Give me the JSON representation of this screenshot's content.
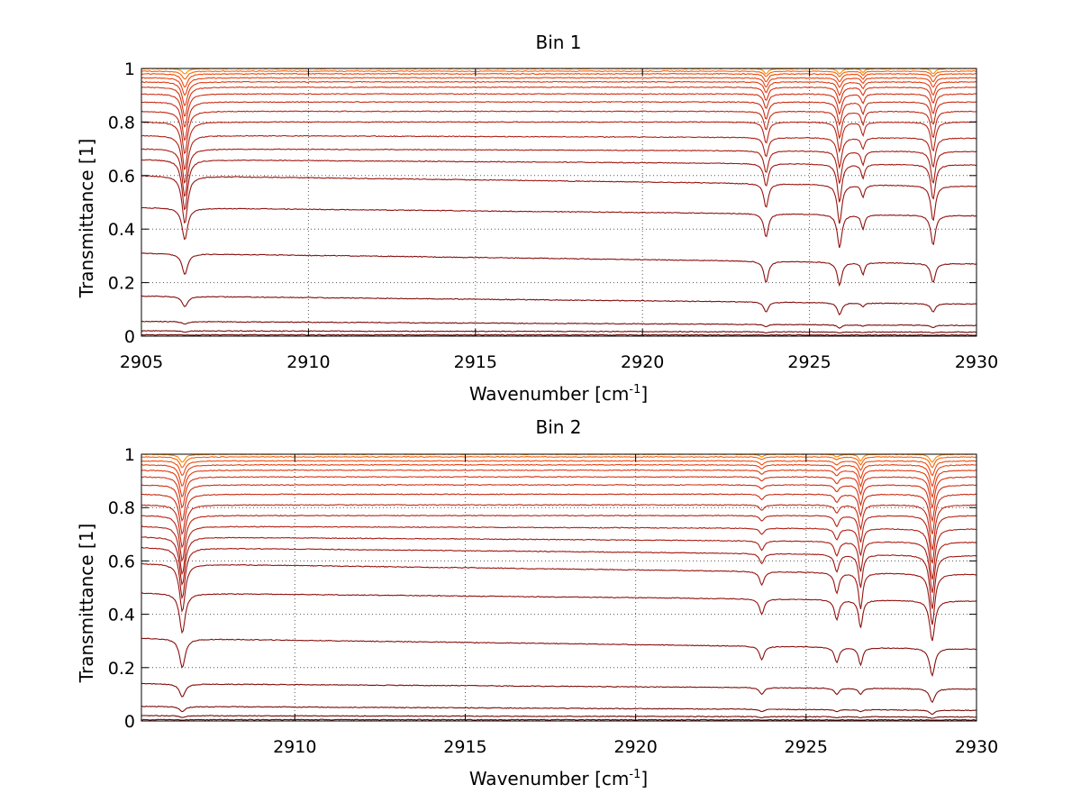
{
  "figure": {
    "background": "#ffffff"
  },
  "chart_data": [
    {
      "type": "line",
      "title": "Bin 1",
      "xlabel": "Wavenumber [cm",
      "xlabel_sup": "-1",
      "xlabel_end": "]",
      "ylabel": "Transmittance [1]",
      "xlim": [
        2905,
        2930
      ],
      "ylim": [
        0,
        1
      ],
      "grid": true,
      "xticks": [
        2905,
        2910,
        2915,
        2920,
        2925,
        2930
      ],
      "xtick_labels": [
        "2905",
        "2910",
        "2915",
        "2920",
        "2925",
        "2930"
      ],
      "yticks": [
        0,
        0.2,
        0.4,
        0.6,
        0.8,
        1
      ],
      "ytick_labels": [
        "0",
        "0.2",
        "0.4",
        "0.6",
        "0.8",
        "1"
      ],
      "absorption_lines": [
        {
          "x": 2906.3,
          "width": 0.1
        },
        {
          "x": 2923.7,
          "width": 0.08
        },
        {
          "x": 2925.9,
          "width": 0.08
        },
        {
          "x": 2926.6,
          "width": 0.06
        },
        {
          "x": 2928.7,
          "width": 0.08
        }
      ],
      "series": [
        {
          "baseline_left": 1.0,
          "baseline_right": 1.0,
          "min_at_lines": [
            0.98,
            0.98,
            0.98,
            0.985,
            0.98
          ],
          "color": "#ff8c00"
        },
        {
          "baseline_left": 0.99,
          "baseline_right": 0.99,
          "min_at_lines": [
            0.96,
            0.97,
            0.97,
            0.975,
            0.97
          ],
          "color": "#f5620a"
        },
        {
          "baseline_left": 0.98,
          "baseline_right": 0.98,
          "min_at_lines": [
            0.93,
            0.95,
            0.95,
            0.96,
            0.95
          ],
          "color": "#ef4a0c"
        },
        {
          "baseline_left": 0.965,
          "baseline_right": 0.965,
          "min_at_lines": [
            0.9,
            0.93,
            0.93,
            0.945,
            0.93
          ],
          "color": "#e8400e"
        },
        {
          "baseline_left": 0.95,
          "baseline_right": 0.95,
          "min_at_lines": [
            0.86,
            0.91,
            0.9,
            0.925,
            0.9
          ],
          "color": "#e03a10"
        },
        {
          "baseline_left": 0.93,
          "baseline_right": 0.93,
          "min_at_lines": [
            0.82,
            0.88,
            0.87,
            0.9,
            0.87
          ],
          "color": "#d83412"
        },
        {
          "baseline_left": 0.905,
          "baseline_right": 0.905,
          "min_at_lines": [
            0.78,
            0.85,
            0.83,
            0.87,
            0.83
          ],
          "color": "#d03014"
        },
        {
          "baseline_left": 0.875,
          "baseline_right": 0.875,
          "min_at_lines": [
            0.73,
            0.81,
            0.79,
            0.83,
            0.79
          ],
          "color": "#c82c14"
        },
        {
          "baseline_left": 0.84,
          "baseline_right": 0.84,
          "min_at_lines": [
            0.68,
            0.77,
            0.74,
            0.79,
            0.74
          ],
          "color": "#c02814"
        },
        {
          "baseline_left": 0.8,
          "baseline_right": 0.8,
          "min_at_lines": [
            0.62,
            0.72,
            0.69,
            0.75,
            0.69
          ],
          "color": "#b82414"
        },
        {
          "baseline_left": 0.75,
          "baseline_right": 0.74,
          "min_at_lines": [
            0.57,
            0.67,
            0.63,
            0.7,
            0.63
          ],
          "color": "#b02014"
        },
        {
          "baseline_left": 0.7,
          "baseline_right": 0.69,
          "min_at_lines": [
            0.52,
            0.61,
            0.57,
            0.64,
            0.57
          ],
          "color": "#a81c12"
        },
        {
          "baseline_left": 0.66,
          "baseline_right": 0.64,
          "min_at_lines": [
            0.47,
            0.56,
            0.5,
            0.59,
            0.51
          ],
          "color": "#a01812"
        },
        {
          "baseline_left": 0.6,
          "baseline_right": 0.56,
          "min_at_lines": [
            0.42,
            0.48,
            0.42,
            0.52,
            0.43
          ],
          "color": "#981410"
        },
        {
          "baseline_left": 0.48,
          "baseline_right": 0.45,
          "min_at_lines": [
            0.36,
            0.37,
            0.33,
            0.4,
            0.34
          ],
          "color": "#901210"
        },
        {
          "baseline_left": 0.31,
          "baseline_right": 0.27,
          "min_at_lines": [
            0.23,
            0.2,
            0.19,
            0.23,
            0.2
          ],
          "color": "#88100e"
        },
        {
          "baseline_left": 0.15,
          "baseline_right": 0.12,
          "min_at_lines": [
            0.11,
            0.09,
            0.08,
            0.11,
            0.09
          ],
          "color": "#800e0c"
        },
        {
          "baseline_left": 0.055,
          "baseline_right": 0.04,
          "min_at_lines": [
            0.045,
            0.035,
            0.03,
            0.037,
            0.032
          ],
          "color": "#780c0a"
        },
        {
          "baseline_left": 0.02,
          "baseline_right": 0.015,
          "min_at_lines": [
            0.015,
            0.012,
            0.012,
            0.013,
            0.012
          ],
          "color": "#700a08"
        },
        {
          "baseline_left": 0.005,
          "baseline_right": 0.004,
          "min_at_lines": [
            0.004,
            0.003,
            0.003,
            0.003,
            0.003
          ],
          "color": "#680806"
        }
      ]
    },
    {
      "type": "line",
      "title": "Bin 2",
      "xlabel": "Wavenumber [cm",
      "xlabel_sup": "-1",
      "xlabel_end": "]",
      "ylabel": "Transmittance [1]",
      "xlim": [
        2905.5,
        2930
      ],
      "ylim": [
        0,
        1
      ],
      "grid": true,
      "xticks": [
        2910,
        2915,
        2920,
        2925,
        2930
      ],
      "xtick_labels": [
        "2910",
        "2915",
        "2920",
        "2925",
        "2930"
      ],
      "yticks": [
        0,
        0.2,
        0.4,
        0.6,
        0.8,
        1
      ],
      "ytick_labels": [
        "0",
        "0.2",
        "0.4",
        "0.6",
        "0.8",
        "1"
      ],
      "absorption_lines": [
        {
          "x": 2906.7,
          "width": 0.1
        },
        {
          "x": 2923.7,
          "width": 0.08
        },
        {
          "x": 2925.9,
          "width": 0.08
        },
        {
          "x": 2926.6,
          "width": 0.07
        },
        {
          "x": 2928.7,
          "width": 0.09
        }
      ],
      "series": [
        {
          "baseline_left": 1.0,
          "baseline_right": 1.0,
          "min_at_lines": [
            0.97,
            0.99,
            0.99,
            0.975,
            0.97
          ],
          "color": "#ff8c00"
        },
        {
          "baseline_left": 0.99,
          "baseline_right": 0.99,
          "min_at_lines": [
            0.95,
            0.98,
            0.98,
            0.96,
            0.95
          ],
          "color": "#f5620a"
        },
        {
          "baseline_left": 0.975,
          "baseline_right": 0.975,
          "min_at_lines": [
            0.92,
            0.96,
            0.96,
            0.94,
            0.92
          ],
          "color": "#ef4a0c"
        },
        {
          "baseline_left": 0.96,
          "baseline_right": 0.96,
          "min_at_lines": [
            0.88,
            0.945,
            0.94,
            0.91,
            0.88
          ],
          "color": "#e8400e"
        },
        {
          "baseline_left": 0.94,
          "baseline_right": 0.94,
          "min_at_lines": [
            0.84,
            0.925,
            0.92,
            0.88,
            0.84
          ],
          "color": "#e03a10"
        },
        {
          "baseline_left": 0.915,
          "baseline_right": 0.915,
          "min_at_lines": [
            0.8,
            0.9,
            0.89,
            0.85,
            0.8
          ],
          "color": "#d83412"
        },
        {
          "baseline_left": 0.885,
          "baseline_right": 0.885,
          "min_at_lines": [
            0.75,
            0.87,
            0.86,
            0.81,
            0.75
          ],
          "color": "#d03014"
        },
        {
          "baseline_left": 0.85,
          "baseline_right": 0.85,
          "min_at_lines": [
            0.7,
            0.83,
            0.82,
            0.77,
            0.7
          ],
          "color": "#c82c14"
        },
        {
          "baseline_left": 0.81,
          "baseline_right": 0.81,
          "min_at_lines": [
            0.65,
            0.79,
            0.78,
            0.72,
            0.64
          ],
          "color": "#c02814"
        },
        {
          "baseline_left": 0.77,
          "baseline_right": 0.77,
          "min_at_lines": [
            0.6,
            0.75,
            0.73,
            0.67,
            0.59
          ],
          "color": "#b82414"
        },
        {
          "baseline_left": 0.73,
          "baseline_right": 0.72,
          "min_at_lines": [
            0.55,
            0.7,
            0.68,
            0.62,
            0.53
          ],
          "color": "#b02014"
        },
        {
          "baseline_left": 0.69,
          "baseline_right": 0.67,
          "min_at_lines": [
            0.51,
            0.64,
            0.62,
            0.56,
            0.48
          ],
          "color": "#a81c12"
        },
        {
          "baseline_left": 0.65,
          "baseline_right": 0.62,
          "min_at_lines": [
            0.46,
            0.59,
            0.56,
            0.5,
            0.42
          ],
          "color": "#a01812"
        },
        {
          "baseline_left": 0.59,
          "baseline_right": 0.55,
          "min_at_lines": [
            0.41,
            0.51,
            0.48,
            0.42,
            0.36
          ],
          "color": "#981410"
        },
        {
          "baseline_left": 0.48,
          "baseline_right": 0.45,
          "min_at_lines": [
            0.33,
            0.4,
            0.38,
            0.35,
            0.3
          ],
          "color": "#901210"
        },
        {
          "baseline_left": 0.31,
          "baseline_right": 0.27,
          "min_at_lines": [
            0.2,
            0.23,
            0.22,
            0.21,
            0.17
          ],
          "color": "#88100e"
        },
        {
          "baseline_left": 0.14,
          "baseline_right": 0.12,
          "min_at_lines": [
            0.09,
            0.1,
            0.1,
            0.1,
            0.07
          ],
          "color": "#800e0c"
        },
        {
          "baseline_left": 0.055,
          "baseline_right": 0.04,
          "min_at_lines": [
            0.035,
            0.035,
            0.035,
            0.035,
            0.025
          ],
          "color": "#780c0a"
        },
        {
          "baseline_left": 0.02,
          "baseline_right": 0.015,
          "min_at_lines": [
            0.013,
            0.012,
            0.012,
            0.012,
            0.01
          ],
          "color": "#700a08"
        },
        {
          "baseline_left": 0.005,
          "baseline_right": 0.004,
          "min_at_lines": [
            0.003,
            0.003,
            0.003,
            0.003,
            0.003
          ],
          "color": "#680806"
        }
      ]
    }
  ]
}
